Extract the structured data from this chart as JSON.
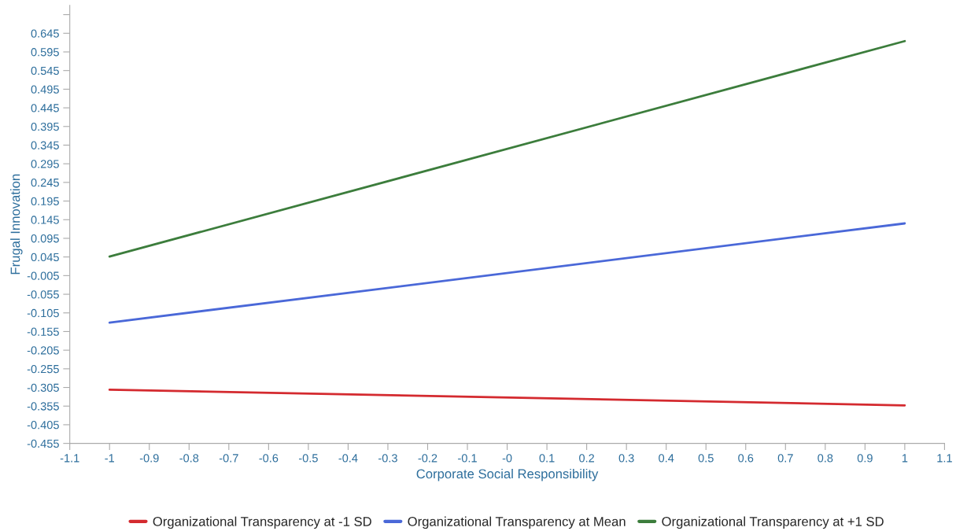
{
  "chart_data": {
    "type": "line",
    "xlabel": "Corporate Social Responsibility",
    "ylabel": "Frugal Innovation",
    "x": [
      -1,
      1
    ],
    "series": [
      {
        "name": "Organizational Transparency at -1 SD",
        "color": "#d42a2f",
        "values": [
          -0.311,
          -0.353
        ]
      },
      {
        "name": "Organizational Transparency at Mean",
        "color": "#4a68d8",
        "values": [
          -0.131,
          0.135
        ]
      },
      {
        "name": "Organizational Transparency at +1 SD",
        "color": "#3c7d3c",
        "values": [
          0.046,
          0.624
        ]
      }
    ],
    "xlim": [
      -1.1,
      1.1
    ],
    "xticks": [
      -1.1,
      -1,
      -0.9,
      -0.8,
      -0.7,
      -0.6,
      -0.5,
      -0.4,
      -0.3,
      -0.2,
      -0.1,
      {
        "value": 0,
        "label": "-0"
      },
      0.1,
      0.2,
      0.3,
      0.4,
      0.5,
      0.6,
      0.7,
      0.8,
      0.9,
      1,
      1.1
    ],
    "ylim": [
      -0.455,
      0.72
    ],
    "yticks": [
      -0.455,
      -0.405,
      -0.355,
      -0.305,
      -0.255,
      -0.205,
      -0.155,
      -0.105,
      -0.055,
      -0.005,
      0.045,
      0.095,
      0.145,
      0.195,
      0.245,
      0.295,
      0.345,
      0.395,
      0.445,
      0.495,
      0.545,
      0.595,
      0.645,
      {
        "value": 0.695,
        "label": null
      }
    ],
    "grid": false,
    "legend": "bottom",
    "marker": "none",
    "line_style": "solid"
  }
}
